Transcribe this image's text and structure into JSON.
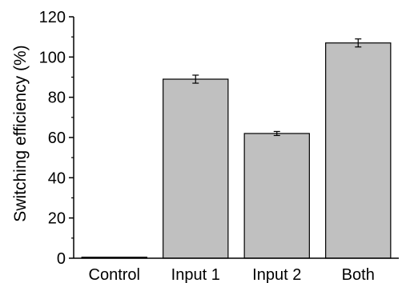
{
  "chart_data": {
    "type": "bar",
    "title": "",
    "xlabel": "",
    "ylabel": "Switching efficiency (%)",
    "categories": [
      "Control",
      "Input 1",
      "Input 2",
      "Both"
    ],
    "values": [
      0.5,
      89,
      62,
      107
    ],
    "errors": [
      0,
      2,
      1,
      2
    ],
    "ylim": [
      0,
      120
    ],
    "yticks": [
      0,
      20,
      40,
      60,
      80,
      100,
      120
    ],
    "grid": false,
    "legend": "none",
    "colors": {
      "bar_fill": "#c0c0c0",
      "bar_stroke": "#000000",
      "axis": "#000000"
    }
  }
}
